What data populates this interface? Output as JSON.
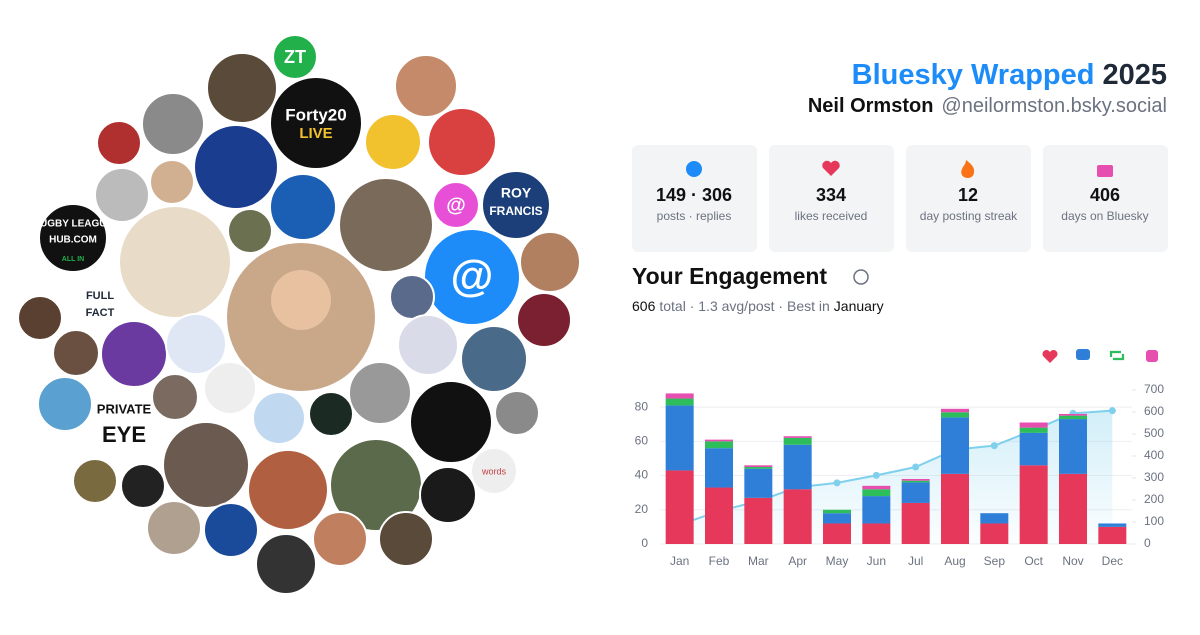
{
  "header": {
    "title": "Bluesky Wrapped",
    "year": "2025",
    "name": "Neil Ormston",
    "handle": "@neilormston.bsky.social"
  },
  "stats": [
    {
      "value": "149 · 306",
      "label": "posts · replies"
    },
    {
      "value": "334",
      "label": "likes received"
    },
    {
      "value": "12",
      "label": "day posting streak"
    },
    {
      "value": "406",
      "label": "days on Bluesky"
    }
  ],
  "engagement": {
    "title": "Your Engagement",
    "total": "606",
    "summary": "total · 1.3 avg/post · Best in",
    "best": "January"
  },
  "collage": {
    "labels": [
      "ZT",
      "Forty20",
      "LIVE",
      "RUGBY LEAGUE",
      "HUB.COM",
      "ALL IN",
      "ROY",
      "FRANCIS",
      "FULL",
      "FACT",
      "PRIVATE",
      "EYE",
      "@",
      "@",
      "words"
    ]
  },
  "chart_data": {
    "type": "bar",
    "stacked": true,
    "categories": [
      "Jan",
      "Feb",
      "Mar",
      "Apr",
      "May",
      "Jun",
      "Jul",
      "Aug",
      "Sep",
      "Oct",
      "Nov",
      "Dec"
    ],
    "series": [
      {
        "color": "#e5385b",
        "values": [
          43,
          33,
          27,
          32,
          12,
          12,
          24,
          41,
          12,
          46,
          41,
          10
        ]
      },
      {
        "color": "#2f7fd8",
        "values": [
          38,
          23,
          17,
          26,
          6,
          16,
          12,
          33,
          6,
          19,
          32,
          2
        ]
      },
      {
        "color": "#2dbd5a",
        "values": [
          4,
          4,
          1,
          4,
          2,
          4,
          1,
          3,
          0,
          3,
          2,
          0
        ]
      },
      {
        "color": "#e64fb0",
        "values": [
          3,
          1,
          1,
          1,
          0,
          2,
          1,
          2,
          0,
          3,
          1,
          0
        ]
      },
      {
        "type": "line",
        "axis": "y2",
        "color": "#7fd0ec",
        "values": [
          88,
          149,
          195,
          258,
          278,
          312,
          350,
          429,
          447,
          518,
          594,
          606
        ]
      }
    ],
    "ylim": [
      0,
      90
    ],
    "yticks": [
      0,
      20,
      40,
      60,
      80
    ],
    "y2lim": [
      0,
      700
    ],
    "y2ticks": [
      0,
      100,
      200,
      300,
      400,
      500,
      600,
      700
    ],
    "grid": true
  }
}
